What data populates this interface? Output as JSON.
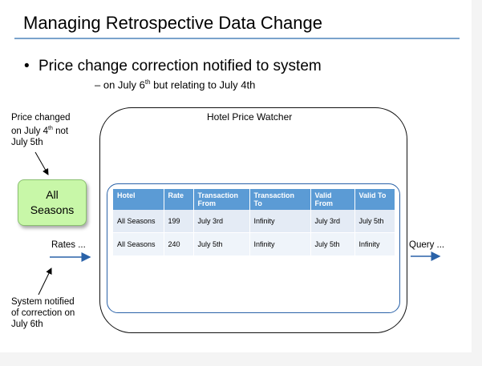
{
  "title": "Managing Retrospective Data Change",
  "bullet": "Price change correction notified to system",
  "sub_bullet": {
    "prefix": "– on July 6",
    "sup": "th",
    "suffix": " but relating to July 4th"
  },
  "note_top": {
    "line1": "Price changed",
    "line2_prefix": "on July 4",
    "line2_sup": "th",
    "line2_suffix": " not",
    "line3": "July 5th"
  },
  "season_box": {
    "line1": "All",
    "line2": "Seasons"
  },
  "watcher_label": "Hotel Price Watcher",
  "rates_label": "Rates ...",
  "query_label": "Query ...",
  "note_bottom": {
    "line1": "System notified",
    "line2": "of correction on",
    "line3": "July 6th"
  },
  "table": {
    "headers": [
      {
        "line1": "Hotel",
        "line2": ""
      },
      {
        "line1": "Rate",
        "line2": ""
      },
      {
        "line1": "Transaction",
        "line2": "From"
      },
      {
        "line1": "Transaction",
        "line2": "To"
      },
      {
        "line1": "Valid",
        "line2": "From"
      },
      {
        "line1": "Valid To",
        "line2": ""
      }
    ],
    "rows": [
      [
        "All Seasons",
        "199",
        "July 3rd",
        "Infinity",
        "July 3rd",
        "July 5th"
      ],
      [
        "All Seasons",
        "240",
        "July 5th",
        "Infinity",
        "July 5th",
        "Infinity"
      ]
    ]
  },
  "colors": {
    "header": "#5b9bd5",
    "accent": "#2a62a8",
    "box_fill": "#c8f7a8"
  }
}
